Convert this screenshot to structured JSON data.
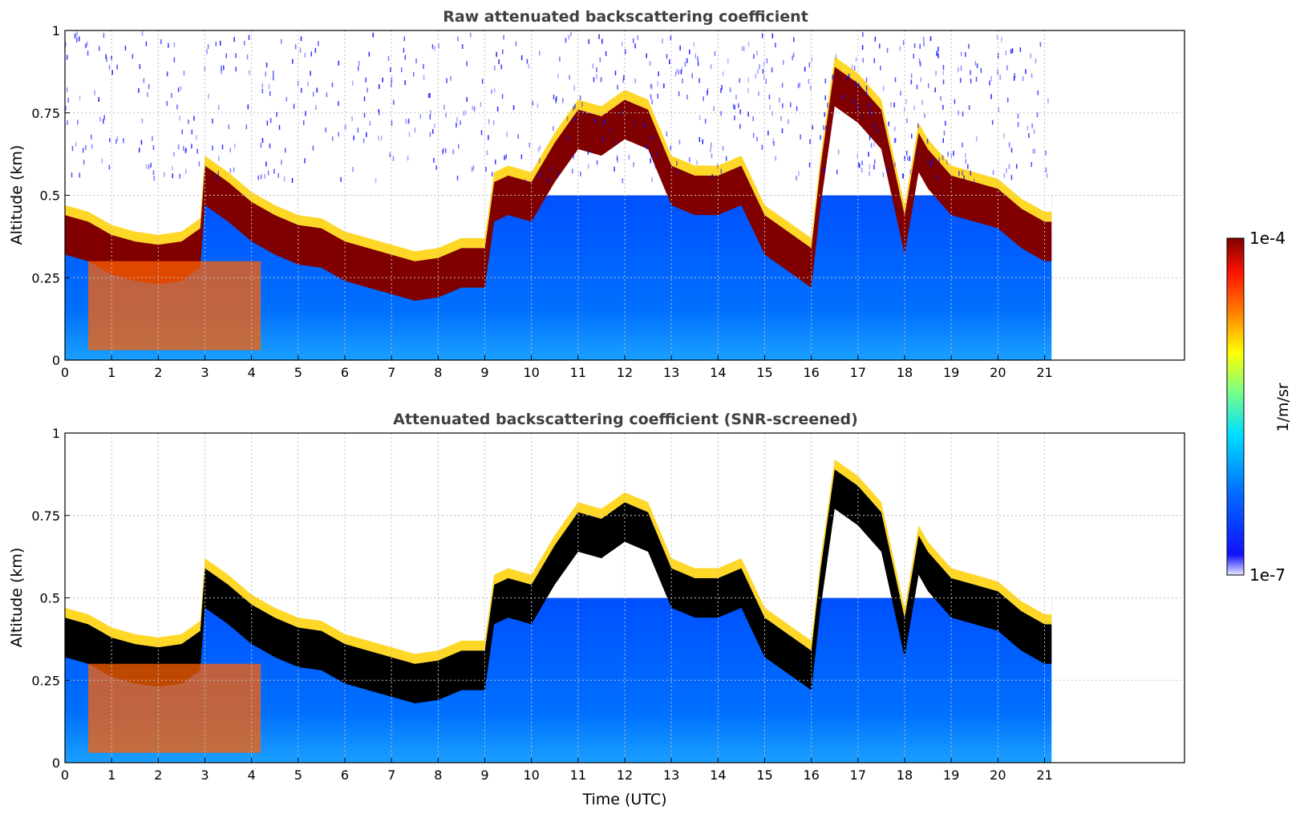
{
  "chart_data": [
    {
      "type": "heatmap",
      "title": "Raw attenuated backscattering coefficient",
      "xlabel": "",
      "ylabel": "Altitude (km)",
      "xlim": [
        0,
        24
      ],
      "ylim": [
        0,
        1
      ],
      "x_ticks": [
        "0",
        "1",
        "2",
        "3",
        "4",
        "5",
        "6",
        "7",
        "8",
        "9",
        "10",
        "11",
        "12",
        "13",
        "14",
        "15",
        "16",
        "17",
        "18",
        "19",
        "20",
        "21"
      ],
      "y_ticks": [
        "0",
        "0.25",
        "0.5",
        "0.75",
        "1"
      ],
      "grid": true,
      "data_extent_x": [
        0,
        21.15
      ],
      "layer_top_km": [
        [
          0,
          0.4
        ],
        [
          0.5,
          0.38
        ],
        [
          1,
          0.34
        ],
        [
          1.5,
          0.32
        ],
        [
          2,
          0.31
        ],
        [
          2.5,
          0.32
        ],
        [
          2.9,
          0.36
        ],
        [
          3,
          0.55
        ],
        [
          3.5,
          0.5
        ],
        [
          4,
          0.44
        ],
        [
          4.5,
          0.4
        ],
        [
          5,
          0.37
        ],
        [
          5.5,
          0.36
        ],
        [
          6,
          0.32
        ],
        [
          6.5,
          0.3
        ],
        [
          7,
          0.28
        ],
        [
          7.5,
          0.26
        ],
        [
          8,
          0.27
        ],
        [
          8.5,
          0.3
        ],
        [
          9,
          0.3
        ],
        [
          9.2,
          0.5
        ],
        [
          9.5,
          0.52
        ],
        [
          10,
          0.5
        ],
        [
          10.5,
          0.62
        ],
        [
          11,
          0.72
        ],
        [
          11.5,
          0.7
        ],
        [
          12,
          0.75
        ],
        [
          12.5,
          0.72
        ],
        [
          13,
          0.55
        ],
        [
          13.5,
          0.52
        ],
        [
          14,
          0.52
        ],
        [
          14.5,
          0.55
        ],
        [
          15,
          0.4
        ],
        [
          15.5,
          0.35
        ],
        [
          16,
          0.3
        ],
        [
          16.2,
          0.55
        ],
        [
          16.5,
          0.85
        ],
        [
          17,
          0.8
        ],
        [
          17.5,
          0.72
        ],
        [
          18,
          0.4
        ],
        [
          18.3,
          0.65
        ],
        [
          18.5,
          0.6
        ],
        [
          19,
          0.52
        ],
        [
          19.5,
          0.5
        ],
        [
          20,
          0.48
        ],
        [
          20.5,
          0.42
        ],
        [
          21,
          0.38
        ],
        [
          21.15,
          0.38
        ]
      ]
    },
    {
      "type": "heatmap",
      "title": "Attenuated backscattering coefficient (SNR-screened)",
      "xlabel": "Time (UTC)",
      "ylabel": "Altitude (km)",
      "xlim": [
        0,
        24
      ],
      "ylim": [
        0,
        1
      ],
      "x_ticks": [
        "0",
        "1",
        "2",
        "3",
        "4",
        "5",
        "6",
        "7",
        "8",
        "9",
        "10",
        "11",
        "12",
        "13",
        "14",
        "15",
        "16",
        "17",
        "18",
        "19",
        "20",
        "21"
      ],
      "y_ticks": [
        "0",
        "0.25",
        "0.5",
        "0.75",
        "1"
      ],
      "grid": true,
      "data_extent_x": [
        0,
        21.15
      ],
      "layer_top_km": [
        [
          0,
          0.4
        ],
        [
          0.5,
          0.38
        ],
        [
          1,
          0.34
        ],
        [
          1.5,
          0.32
        ],
        [
          2,
          0.31
        ],
        [
          2.5,
          0.32
        ],
        [
          2.9,
          0.36
        ],
        [
          3,
          0.55
        ],
        [
          3.5,
          0.5
        ],
        [
          4,
          0.44
        ],
        [
          4.5,
          0.4
        ],
        [
          5,
          0.37
        ],
        [
          5.5,
          0.36
        ],
        [
          6,
          0.32
        ],
        [
          6.5,
          0.3
        ],
        [
          7,
          0.28
        ],
        [
          7.5,
          0.26
        ],
        [
          8,
          0.27
        ],
        [
          8.5,
          0.3
        ],
        [
          9,
          0.3
        ],
        [
          9.2,
          0.5
        ],
        [
          9.5,
          0.52
        ],
        [
          10,
          0.5
        ],
        [
          10.5,
          0.62
        ],
        [
          11,
          0.72
        ],
        [
          11.5,
          0.7
        ],
        [
          12,
          0.75
        ],
        [
          12.5,
          0.72
        ],
        [
          13,
          0.55
        ],
        [
          13.5,
          0.52
        ],
        [
          14,
          0.52
        ],
        [
          14.5,
          0.55
        ],
        [
          15,
          0.4
        ],
        [
          15.5,
          0.35
        ],
        [
          16,
          0.3
        ],
        [
          16.2,
          0.55
        ],
        [
          16.5,
          0.85
        ],
        [
          17,
          0.8
        ],
        [
          17.5,
          0.72
        ],
        [
          18,
          0.4
        ],
        [
          18.3,
          0.65
        ],
        [
          18.5,
          0.6
        ],
        [
          19,
          0.52
        ],
        [
          19.5,
          0.5
        ],
        [
          20,
          0.48
        ],
        [
          20.5,
          0.42
        ],
        [
          21,
          0.38
        ],
        [
          21.15,
          0.38
        ]
      ]
    }
  ],
  "colorbar": {
    "label": "1/m/sr",
    "max_label": "1e-4",
    "min_label": "1e-7",
    "scale": "log",
    "colors": [
      "#e8e8ff",
      "#0000ff",
      "#0080ff",
      "#00ffff",
      "#80ff80",
      "#ffff00",
      "#ff8000",
      "#ff0000",
      "#800000"
    ]
  },
  "colors": {
    "background": "#0040ff",
    "layer": "#800000",
    "screened_layer": "#000000",
    "noise": "#0000ff",
    "axis": "#000000",
    "title": "#404040",
    "grid": "#c0c0c0"
  }
}
